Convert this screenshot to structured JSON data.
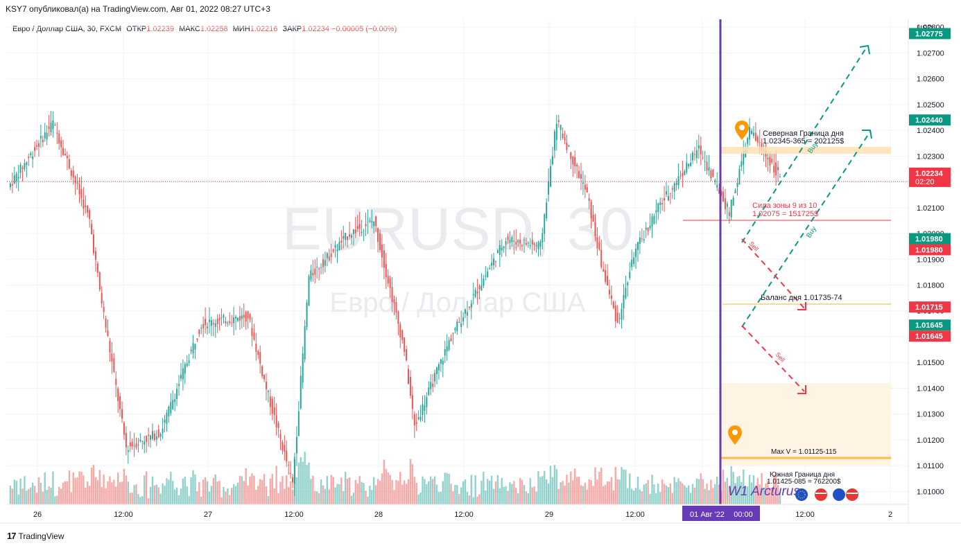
{
  "header": {
    "publisher_line": "KSY7 опубликовал(а) на TradingView.com, Авг 01, 2022 08:27 UTC+3"
  },
  "legend": {
    "symbol": "Евро / Доллар США, 30, FXCM",
    "open_label": "ОТКР",
    "open": "1.02239",
    "high_label": "МАКС",
    "high": "1.02258",
    "low_label": "МИН",
    "low": "1.02216",
    "close_label": "ЗАКР",
    "close": "1.02234",
    "change": "−0.00005 (−0.00%)"
  },
  "watermark": {
    "symbol": "EURUSD, 30",
    "description": "Евро / Доллар США"
  },
  "footer": {
    "brand": "TradingView"
  },
  "colors": {
    "up": "#26a69a",
    "down": "#ef5350",
    "purple": "#673ab7",
    "orange": "#ff9800",
    "green_dash": "#089981",
    "red_dash": "#f23645"
  },
  "chart_data": {
    "type": "candlestick",
    "currency": "USD",
    "ylim": [
      1.0095,
      1.0283
    ],
    "y_ticks": [
      "1.02800",
      "1.02700",
      "1.02600",
      "1.02500",
      "1.02400",
      "1.02300",
      "1.02200",
      "1.02100",
      "1.02000",
      "1.01900",
      "1.01800",
      "1.01700",
      "1.01600",
      "1.01500",
      "1.01400",
      "1.01300",
      "1.01200",
      "1.01100",
      "1.01000"
    ],
    "x_ticks": [
      "26",
      "12:00",
      "27",
      "12:00",
      "28",
      "12:00",
      "29",
      "12:00",
      "01 Авг '22",
      "00:00",
      "12:00",
      "2"
    ],
    "price_tags": [
      {
        "value": 1.02775,
        "label": "1.02775",
        "color": "#089981"
      },
      {
        "value": 1.0244,
        "label": "1.02440",
        "color": "#089981"
      },
      {
        "value": 1.02234,
        "label": "1.02234",
        "color": "#f23645",
        "sub": "02:20"
      },
      {
        "value": 1.0198,
        "label": "1.01980",
        "color": "#089981"
      },
      {
        "value": 1.0198,
        "label": "1.01980",
        "color": "#f23645",
        "offset": 1
      },
      {
        "value": 1.01715,
        "label": "1.01715",
        "color": "#f23645"
      },
      {
        "value": 1.01645,
        "label": "1.01645",
        "color": "#089981"
      },
      {
        "value": 1.01645,
        "label": "1.01645",
        "color": "#f23645",
        "offset": 1
      }
    ],
    "annotations": {
      "north_title": "Северная Граница дня",
      "north_value": "1.02345-365 = 202125$",
      "zone_strength": "Сила зоны 9 из 10",
      "zone_value": "1.02075 = 151725$",
      "balance": "Баланс дня   1.01735-74",
      "max_v": "Max V = 1.01125-115",
      "south_title": "Южная Граница дня",
      "south_value": "1.01425-085 = 762200$",
      "buy": "Buy",
      "sell": "Sell",
      "brand": "W1  Arcturus"
    },
    "candles_start": 1.0218
  }
}
